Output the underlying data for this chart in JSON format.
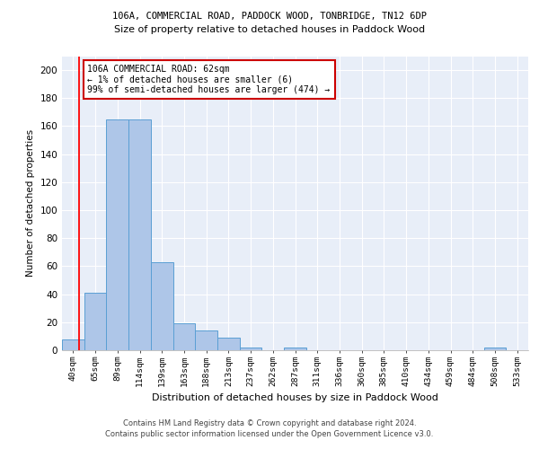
{
  "title": "106A, COMMERCIAL ROAD, PADDOCK WOOD, TONBRIDGE, TN12 6DP",
  "subtitle": "Size of property relative to detached houses in Paddock Wood",
  "xlabel": "Distribution of detached houses by size in Paddock Wood",
  "ylabel": "Number of detached properties",
  "categories": [
    "40sqm",
    "65sqm",
    "89sqm",
    "114sqm",
    "139sqm",
    "163sqm",
    "188sqm",
    "213sqm",
    "237sqm",
    "262sqm",
    "287sqm",
    "311sqm",
    "336sqm",
    "360sqm",
    "385sqm",
    "410sqm",
    "434sqm",
    "459sqm",
    "484sqm",
    "508sqm",
    "533sqm"
  ],
  "values": [
    8,
    41,
    165,
    165,
    63,
    19,
    14,
    9,
    2,
    0,
    2,
    0,
    0,
    0,
    0,
    0,
    0,
    0,
    0,
    2,
    0
  ],
  "bar_color": "#aec6e8",
  "bar_edge_color": "#5a9fd4",
  "background_color": "#e8eef8",
  "grid_color": "#ffffff",
  "annotation_line1": "106A COMMERCIAL ROAD: 62sqm",
  "annotation_line2": "← 1% of detached houses are smaller (6)",
  "annotation_line3": "99% of semi-detached houses are larger (474) →",
  "annotation_box_color": "#ffffff",
  "annotation_box_edge_color": "#cc0000",
  "red_line_x": 0.27,
  "footer": "Contains HM Land Registry data © Crown copyright and database right 2024.\nContains public sector information licensed under the Open Government Licence v3.0.",
  "ylim": [
    0,
    210
  ],
  "yticks": [
    0,
    20,
    40,
    60,
    80,
    100,
    120,
    140,
    160,
    180,
    200
  ]
}
